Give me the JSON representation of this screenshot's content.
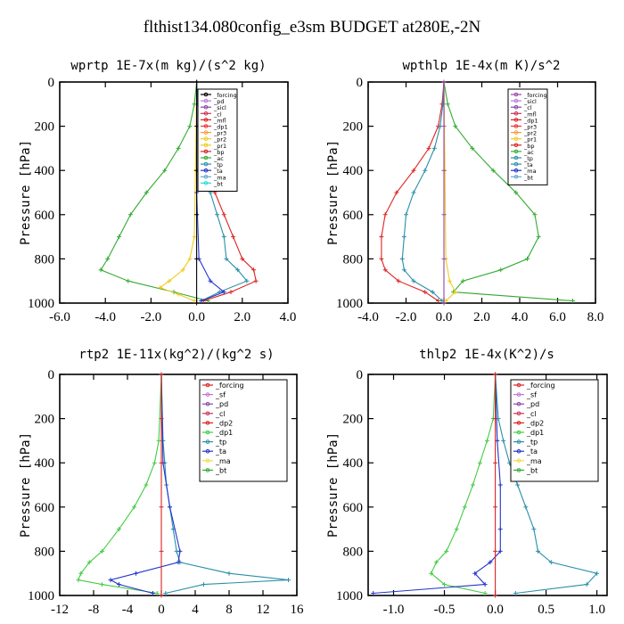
{
  "figure": {
    "title": "flthist134.080config_e3sm  BUDGET at280E,-2N"
  },
  "chart_data": [
    {
      "type": "line",
      "title": "wprtp  1E-7x(m kg)/(s^2 kg)",
      "xlabel": "",
      "ylabel": "Pressure [hPa]",
      "xlim": [
        -6,
        4
      ],
      "ylim": [
        1000,
        0
      ],
      "xticks": [
        -6,
        -4,
        -2,
        0,
        2,
        4
      ],
      "xtick_labels": [
        "-6.0",
        "-4.0",
        "-2.0",
        "0.0",
        "2.0",
        "4.0"
      ],
      "yticks": [
        0,
        200,
        400,
        600,
        800,
        1000
      ],
      "ytick_labels": [
        "0",
        "200",
        "400",
        "600",
        "800",
        "1000"
      ],
      "legend_position": "top-right",
      "legend": [
        "_forcing",
        "_pd",
        "_sicl",
        "_cl",
        "_mfl",
        "_dp1",
        "_pr3",
        "_pr2",
        "_pr1",
        "_bp",
        "_ac",
        "_tp",
        "_ta",
        "_ma",
        "_bt"
      ],
      "series": [
        {
          "name": "_ac",
          "color": "#33aa33",
          "y": [
            0,
            100,
            200,
            300,
            400,
            500,
            600,
            700,
            800,
            850,
            900,
            950,
            990
          ],
          "x": [
            0.0,
            -0.1,
            -0.3,
            -0.8,
            -1.4,
            -2.2,
            -2.9,
            -3.4,
            -3.9,
            -4.2,
            -3.0,
            -1.0,
            0.5
          ]
        },
        {
          "name": "_bp",
          "color": "#dd2222",
          "y": [
            0,
            100,
            200,
            300,
            400,
            500,
            600,
            700,
            800,
            850,
            900,
            950,
            990
          ],
          "x": [
            0.0,
            0.05,
            0.1,
            0.2,
            0.4,
            0.8,
            1.2,
            1.6,
            2.0,
            2.5,
            2.6,
            1.5,
            0.3
          ]
        },
        {
          "name": "_tp",
          "color": "#2a8fa8",
          "y": [
            0,
            100,
            200,
            300,
            400,
            500,
            600,
            700,
            800,
            850,
            900,
            950,
            990
          ],
          "x": [
            0.0,
            0.05,
            0.1,
            0.2,
            0.35,
            0.6,
            0.9,
            1.2,
            1.3,
            1.8,
            2.2,
            1.0,
            0.2
          ]
        },
        {
          "name": "_pr1",
          "color": "#eecc22",
          "y": [
            0,
            400,
            700,
            800,
            850,
            900,
            930,
            960,
            990
          ],
          "x": [
            0.0,
            -0.05,
            -0.1,
            -0.3,
            -0.6,
            -1.2,
            -1.6,
            -0.8,
            -0.1
          ]
        },
        {
          "name": "_ta",
          "color": "#2233cc",
          "y": [
            0,
            500,
            800,
            900,
            950,
            990
          ],
          "x": [
            0.0,
            0.0,
            0.1,
            0.6,
            1.2,
            0.2
          ]
        },
        {
          "name": "_forcing",
          "color": "#000000",
          "y": [
            0,
            200,
            400,
            600,
            800,
            1000
          ],
          "x": [
            0.0,
            0.0,
            0.0,
            0.0,
            0.0,
            0.0
          ]
        }
      ]
    },
    {
      "type": "line",
      "title": "wpthlp  1E-4x(m K)/s^2",
      "xlabel": "",
      "ylabel": "Pressure [hPa]",
      "xlim": [
        -4,
        8
      ],
      "ylim": [
        1000,
        0
      ],
      "xticks": [
        -4,
        -2,
        0,
        2,
        4,
        6,
        8
      ],
      "xtick_labels": [
        "-4.0",
        "-2.0",
        "0.0",
        "2.0",
        "4.0",
        "6.0",
        "8.0"
      ],
      "yticks": [
        0,
        200,
        400,
        600,
        800,
        1000
      ],
      "ytick_labels": [
        "0",
        "200",
        "400",
        "600",
        "800",
        "1000"
      ],
      "legend_position": "top-right",
      "legend": [
        "_forcing",
        "_sicl",
        "_cl",
        "_mfl",
        "_dp1",
        "_pr3",
        "_pr2",
        "_pr1",
        "_bp",
        "_ac",
        "_tp",
        "_ta",
        "_ma",
        "_bt"
      ],
      "series": [
        {
          "name": "_ac",
          "color": "#33aa33",
          "y": [
            0,
            100,
            200,
            300,
            400,
            500,
            600,
            700,
            800,
            850,
            900,
            950,
            990
          ],
          "x": [
            0.0,
            0.2,
            0.6,
            1.5,
            2.6,
            3.8,
            4.8,
            5.0,
            4.4,
            3.0,
            1.0,
            0.5,
            6.8
          ]
        },
        {
          "name": "_bp",
          "color": "#dd2222",
          "y": [
            0,
            100,
            200,
            300,
            400,
            500,
            600,
            700,
            800,
            850,
            900,
            950,
            990
          ],
          "x": [
            0.0,
            -0.1,
            -0.3,
            -0.8,
            -1.6,
            -2.5,
            -3.1,
            -3.3,
            -3.3,
            -3.1,
            -2.4,
            -1.0,
            -0.3
          ]
        },
        {
          "name": "_tp",
          "color": "#2a8fa8",
          "y": [
            0,
            100,
            200,
            300,
            400,
            500,
            600,
            700,
            800,
            850,
            900,
            950,
            990
          ],
          "x": [
            0.0,
            -0.05,
            -0.2,
            -0.5,
            -1.0,
            -1.6,
            -2.0,
            -2.1,
            -2.2,
            -2.1,
            -1.6,
            -0.6,
            -0.1
          ]
        },
        {
          "name": "_pr1",
          "color": "#eecc22",
          "y": [
            0,
            400,
            800,
            900,
            950,
            990
          ],
          "x": [
            0.0,
            0.05,
            0.1,
            0.3,
            0.6,
            0.1
          ]
        },
        {
          "name": "_forcing",
          "color": "#9944aa",
          "y": [
            0,
            200,
            400,
            600,
            800,
            1000
          ],
          "x": [
            0.0,
            0.0,
            0.0,
            0.0,
            0.0,
            0.0
          ]
        }
      ]
    },
    {
      "type": "line",
      "title": "rtp2  1E-11x(kg^2)/(kg^2 s)",
      "xlabel": "",
      "ylabel": "Pressure [hPa]",
      "xlim": [
        -12,
        16
      ],
      "ylim": [
        1000,
        0
      ],
      "xticks": [
        -12,
        -8,
        -4,
        0,
        4,
        8,
        12,
        16
      ],
      "xtick_labels": [
        "-12",
        "-8",
        "-4",
        "0",
        "4",
        "8",
        "12",
        "16"
      ],
      "yticks": [
        0,
        200,
        400,
        600,
        800,
        1000
      ],
      "ytick_labels": [
        "0",
        "200",
        "400",
        "600",
        "800",
        "1000"
      ],
      "legend_position": "top-right",
      "legend": [
        "_forcing",
        "_sf",
        "_pd",
        "_cl",
        "_dp2",
        "_dp1",
        "_tp",
        "_ta",
        "_ma",
        "_bt"
      ],
      "series": [
        {
          "name": "_dp1",
          "color": "#44cc44",
          "y": [
            0,
            300,
            400,
            500,
            600,
            700,
            800,
            850,
            900,
            930,
            950,
            990
          ],
          "x": [
            0.0,
            -0.3,
            -0.8,
            -1.8,
            -3.2,
            -5.0,
            -7.0,
            -8.5,
            -9.5,
            -9.8,
            -7.0,
            -0.5
          ]
        },
        {
          "name": "_tp",
          "color": "#2a8fa8",
          "y": [
            0,
            300,
            400,
            500,
            600,
            700,
            800,
            850,
            900,
            930,
            950,
            990
          ],
          "x": [
            0.0,
            0.2,
            0.4,
            0.6,
            1.0,
            1.4,
            1.8,
            2.2,
            8.0,
            15.0,
            5.0,
            0.5
          ]
        },
        {
          "name": "_ta",
          "color": "#2233cc",
          "y": [
            0,
            400,
            600,
            800,
            850,
            900,
            930,
            950,
            990
          ],
          "x": [
            0.0,
            0.2,
            1.0,
            2.2,
            2.0,
            -3.0,
            -6.0,
            -5.0,
            -1.0
          ]
        },
        {
          "name": "_forcing",
          "color": "#dd2222",
          "y": [
            0,
            200,
            400,
            600,
            800,
            1000
          ],
          "x": [
            0.0,
            0.0,
            0.0,
            0.0,
            0.0,
            0.0
          ]
        }
      ]
    },
    {
      "type": "line",
      "title": "thlp2  1E-4x(K^2)/s",
      "xlabel": "",
      "ylabel": "Pressure [hPa]",
      "xlim": [
        -1.25,
        1.1
      ],
      "ylim": [
        1000,
        0
      ],
      "xticks": [
        -1.0,
        -0.5,
        0.0,
        0.5,
        1.0
      ],
      "xtick_labels": [
        "-1.0",
        "-0.5",
        "0.0",
        "0.5",
        "1.0"
      ],
      "yticks": [
        0,
        200,
        400,
        600,
        800,
        1000
      ],
      "ytick_labels": [
        "0",
        "200",
        "400",
        "600",
        "800",
        "1000"
      ],
      "legend_position": "top-right",
      "legend": [
        "_forcing",
        "_sf",
        "_pd",
        "_cl",
        "_dp2",
        "_dp1",
        "_tp",
        "_ta",
        "_ma",
        "_bt"
      ],
      "series": [
        {
          "name": "_dp1",
          "color": "#44cc44",
          "y": [
            0,
            200,
            300,
            400,
            500,
            600,
            700,
            800,
            850,
            900,
            950,
            990
          ],
          "x": [
            0.0,
            -0.02,
            -0.08,
            -0.15,
            -0.22,
            -0.3,
            -0.38,
            -0.48,
            -0.58,
            -0.63,
            -0.5,
            -0.1
          ]
        },
        {
          "name": "_tp",
          "color": "#2a8fa8",
          "y": [
            0,
            200,
            300,
            400,
            500,
            600,
            700,
            800,
            850,
            900,
            950,
            990
          ],
          "x": [
            0.0,
            0.03,
            0.08,
            0.14,
            0.22,
            0.3,
            0.38,
            0.42,
            0.55,
            1.0,
            0.9,
            0.2
          ]
        },
        {
          "name": "_ta",
          "color": "#2233cc",
          "y": [
            0,
            300,
            500,
            700,
            800,
            850,
            900,
            950,
            990
          ],
          "x": [
            0.0,
            0.02,
            0.05,
            0.05,
            0.05,
            -0.05,
            -0.2,
            -0.1,
            -1.2
          ]
        },
        {
          "name": "_forcing",
          "color": "#dd2222",
          "y": [
            0,
            200,
            400,
            600,
            800,
            1000
          ],
          "x": [
            0.0,
            0.0,
            0.0,
            0.0,
            0.0,
            0.0
          ]
        }
      ]
    }
  ]
}
